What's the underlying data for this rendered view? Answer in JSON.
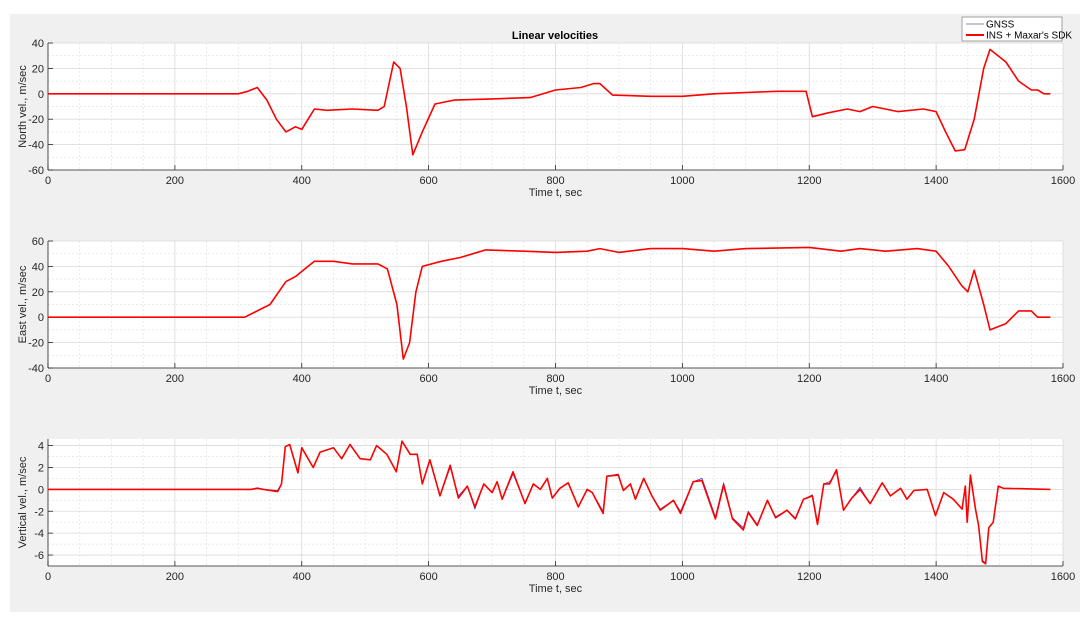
{
  "title": "Linear velocities",
  "legend": {
    "gnss": "GNSS",
    "ins": "INS + Maxar's SDK"
  },
  "colors": {
    "gnss": "#3a3acc",
    "ins": "#ff0000",
    "grid": "#d9d9d9",
    "figure_bg": "#f0f0f0"
  },
  "chart_data": [
    {
      "type": "line",
      "title": "Linear velocities",
      "xlabel": "Time  t, sec",
      "ylabel": "North vel., m/sec",
      "xlim": [
        0,
        1600
      ],
      "ylim": [
        -60,
        40
      ],
      "xticks": [
        0,
        200,
        400,
        600,
        800,
        1000,
        1200,
        1400,
        1600
      ],
      "yticks": [
        -60,
        -40,
        -20,
        0,
        20,
        40
      ],
      "grid": true,
      "legend_position": "top-right",
      "x": [
        0,
        300,
        315,
        330,
        345,
        360,
        375,
        390,
        400,
        410,
        420,
        440,
        480,
        520,
        530,
        545,
        555,
        565,
        575,
        590,
        610,
        640,
        700,
        760,
        800,
        840,
        860,
        870,
        890,
        950,
        1000,
        1050,
        1100,
        1150,
        1195,
        1205,
        1230,
        1260,
        1280,
        1300,
        1340,
        1380,
        1400,
        1415,
        1430,
        1445,
        1460,
        1475,
        1485,
        1510,
        1530,
        1550,
        1560,
        1570,
        1580
      ],
      "series": [
        {
          "name": "GNSS",
          "values": [
            0,
            0,
            2,
            5,
            -5,
            -20,
            -30,
            -26,
            -28,
            -20,
            -12,
            -13,
            -12,
            -13,
            -10,
            25,
            20,
            -10,
            -48,
            -30,
            -8,
            -5,
            -4,
            -3,
            3,
            5,
            8,
            8,
            -1,
            -2,
            -2,
            0,
            1,
            2,
            2,
            -18,
            -15,
            -12,
            -14,
            -10,
            -14,
            -12,
            -14,
            -30,
            -45,
            -44,
            -20,
            20,
            35,
            25,
            10,
            3,
            3,
            0,
            0
          ]
        },
        {
          "name": "INS + Maxar's SDK",
          "values": [
            0,
            0,
            2,
            5,
            -5,
            -20,
            -30,
            -26,
            -28,
            -20,
            -12,
            -13,
            -12,
            -13,
            -10,
            25,
            20,
            -10,
            -48,
            -30,
            -8,
            -5,
            -4,
            -3,
            3,
            5,
            8,
            8,
            -1,
            -2,
            -2,
            0,
            1,
            2,
            2,
            -18,
            -15,
            -12,
            -14,
            -10,
            -14,
            -12,
            -14,
            -30,
            -45,
            -44,
            -20,
            20,
            35,
            25,
            10,
            3,
            3,
            0,
            0
          ]
        }
      ]
    },
    {
      "type": "line",
      "xlabel": "Time  t, sec",
      "ylabel": "East vel., m/sec",
      "xlim": [
        0,
        1600
      ],
      "ylim": [
        -40,
        60
      ],
      "xticks": [
        0,
        200,
        400,
        600,
        800,
        1000,
        1200,
        1400,
        1600
      ],
      "yticks": [
        -40,
        -20,
        0,
        20,
        40,
        60
      ],
      "grid": true,
      "x": [
        0,
        310,
        330,
        350,
        375,
        390,
        405,
        420,
        450,
        480,
        520,
        535,
        550,
        560,
        570,
        580,
        590,
        620,
        650,
        670,
        690,
        750,
        800,
        850,
        870,
        900,
        950,
        1000,
        1050,
        1100,
        1200,
        1250,
        1280,
        1320,
        1370,
        1400,
        1420,
        1440,
        1450,
        1460,
        1475,
        1485,
        1510,
        1530,
        1550,
        1560,
        1580
      ],
      "series": [
        {
          "name": "GNSS",
          "values": [
            0,
            0,
            5,
            10,
            28,
            32,
            38,
            44,
            44,
            42,
            42,
            38,
            10,
            -33,
            -20,
            20,
            40,
            44,
            47,
            50,
            53,
            52,
            51,
            52,
            54,
            51,
            54,
            54,
            52,
            54,
            55,
            52,
            54,
            52,
            54,
            52,
            40,
            25,
            20,
            37,
            10,
            -10,
            -5,
            5,
            5,
            0,
            0
          ]
        },
        {
          "name": "INS + Maxar's SDK",
          "values": [
            0,
            0,
            5,
            10,
            28,
            32,
            38,
            44,
            44,
            42,
            42,
            38,
            10,
            -33,
            -20,
            20,
            40,
            44,
            47,
            50,
            53,
            52,
            51,
            52,
            54,
            51,
            54,
            54,
            52,
            54,
            55,
            52,
            54,
            52,
            54,
            52,
            40,
            25,
            20,
            37,
            10,
            -10,
            -5,
            5,
            5,
            0,
            0
          ]
        }
      ]
    },
    {
      "type": "line",
      "xlabel": "Time  t, sec",
      "ylabel": "Vertical vel., m/sec",
      "xlim": [
        0,
        1600
      ],
      "ylim": [
        -7,
        4.6
      ],
      "xticks": [
        0,
        200,
        400,
        600,
        800,
        1000,
        1200,
        1400,
        1600
      ],
      "yticks": [
        -6,
        -4,
        -2,
        0,
        2,
        4
      ],
      "grid": true,
      "x": [
        0,
        320,
        330,
        340,
        362,
        368,
        374,
        381,
        394,
        400,
        418,
        429,
        450,
        463,
        476,
        492,
        508,
        518,
        534,
        549,
        558,
        571,
        582,
        590,
        602,
        618,
        634,
        647,
        661,
        673,
        687,
        700,
        708,
        716,
        733,
        752,
        765,
        776,
        787,
        795,
        807,
        820,
        836,
        850,
        858,
        875,
        881,
        899,
        907,
        918,
        926,
        939,
        952,
        965,
        986,
        997,
        1017,
        1031,
        1052,
        1065,
        1079,
        1096,
        1104,
        1118,
        1134,
        1147,
        1165,
        1178,
        1191,
        1205,
        1213,
        1223,
        1232,
        1243,
        1254,
        1267,
        1280,
        1296,
        1315,
        1328,
        1344,
        1354,
        1365,
        1386,
        1399,
        1412,
        1427,
        1441,
        1446,
        1449,
        1454,
        1462,
        1467,
        1473,
        1478,
        1483,
        1490,
        1498,
        1506,
        1580
      ],
      "series": [
        {
          "name": "GNSS",
          "values": [
            0,
            0,
            0.15,
            0,
            -0.1,
            0.5,
            3.9,
            4.1,
            1.5,
            3.8,
            2.0,
            3.4,
            3.8,
            2.8,
            4.1,
            2.8,
            2.7,
            4.0,
            3.2,
            1.6,
            4.4,
            3.2,
            3.2,
            0.5,
            2.7,
            -0.6,
            2.0,
            -0.6,
            0.3,
            -1.8,
            0.5,
            -0.3,
            0.7,
            -0.9,
            1.4,
            -1.2,
            0.5,
            0,
            1.0,
            -0.8,
            0.1,
            0.6,
            -1.6,
            0,
            -0.3,
            -2.0,
            1.2,
            1.4,
            -0.1,
            0.5,
            -0.9,
            1.0,
            -0.6,
            -1.8,
            -1.0,
            -2.0,
            0.7,
            1.0,
            -2.5,
            0.6,
            -2.6,
            -3.5,
            -2.0,
            -3.2,
            -1.0,
            -2.5,
            -1.9,
            -2.6,
            -0.9,
            -0.5,
            -3.0,
            0.5,
            0.7,
            1.6,
            -1.9,
            -0.8,
            0.2,
            -1.3,
            0.6,
            -0.6,
            0.1,
            -0.9,
            -0.1,
            0,
            -2.4,
            -0.3,
            -0.9,
            -1.8,
            0.3,
            -2.8,
            1.1,
            -1.8,
            -3.3,
            -6.5,
            -6.7,
            -3.5,
            -3.0,
            0.3,
            0.1,
            0
          ]
        },
        {
          "name": "INS + Maxar's SDK",
          "values": [
            0,
            0,
            0.1,
            0,
            -0.2,
            0.5,
            3.9,
            4.1,
            1.5,
            3.8,
            2.0,
            3.4,
            3.8,
            2.8,
            4.1,
            2.8,
            2.7,
            4.0,
            3.2,
            1.6,
            4.4,
            3.2,
            3.2,
            0.5,
            2.7,
            -0.6,
            2.2,
            -0.8,
            0.3,
            -1.6,
            0.5,
            -0.3,
            0.7,
            -0.9,
            1.6,
            -1.3,
            0.5,
            0,
            1.0,
            -0.8,
            0.1,
            0.6,
            -1.6,
            0,
            -0.3,
            -2.2,
            1.2,
            1.3,
            -0.1,
            0.5,
            -0.9,
            1.0,
            -0.6,
            -1.9,
            -1.0,
            -2.2,
            0.7,
            0.8,
            -2.7,
            0.4,
            -2.7,
            -3.7,
            -2.1,
            -3.3,
            -1.0,
            -2.6,
            -1.9,
            -2.7,
            -0.9,
            -0.6,
            -3.2,
            0.5,
            0.5,
            1.8,
            -1.9,
            -0.8,
            0,
            -1.3,
            0.6,
            -0.6,
            0.1,
            -0.9,
            -0.1,
            0,
            -2.4,
            -0.3,
            -0.9,
            -1.8,
            0.3,
            -3.0,
            1.3,
            -1.8,
            -3.3,
            -6.6,
            -6.8,
            -3.5,
            -3.0,
            0.3,
            0.1,
            0
          ]
        }
      ]
    }
  ]
}
